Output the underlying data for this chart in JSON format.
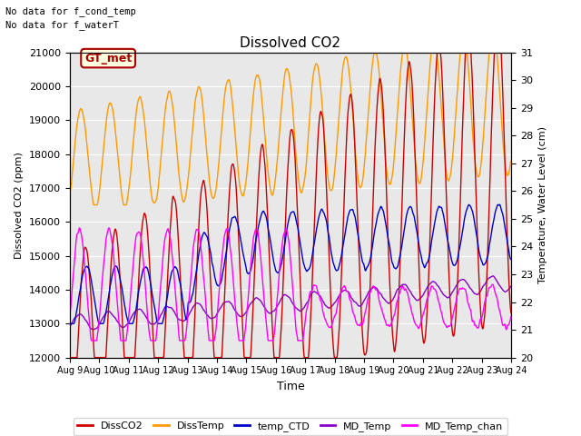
{
  "title": "Dissolved CO2",
  "xlabel": "Time",
  "ylabel_left": "Dissolved CO2 (ppm)",
  "ylabel_right": "Temperature, Water Level (cm)",
  "annotation1": "No data for f_cond_temp",
  "annotation2": "No data for f_waterT",
  "gt_met_label": "GT_met",
  "ylim_left": [
    12000,
    21000
  ],
  "ylim_right": [
    20.0,
    31.0
  ],
  "xtick_labels": [
    "Aug 9",
    "Aug 10",
    "Aug 11",
    "Aug 12",
    "Aug 13",
    "Aug 14",
    "Aug 15",
    "Aug 16",
    "Aug 17",
    "Aug 18",
    "Aug 19",
    "Aug 20",
    "Aug 21",
    "Aug 22",
    "Aug 23",
    "Aug 24"
  ],
  "colors": {
    "DissCO2": "#cc0000",
    "DissTemp": "#ff9900",
    "temp_CTD": "#0000cc",
    "MD_Temp": "#8800cc",
    "MD_Temp_chan": "#ff00ff"
  },
  "plot_bg_color": "#e8e8e8",
  "fig_bg_color": "#ffffff"
}
